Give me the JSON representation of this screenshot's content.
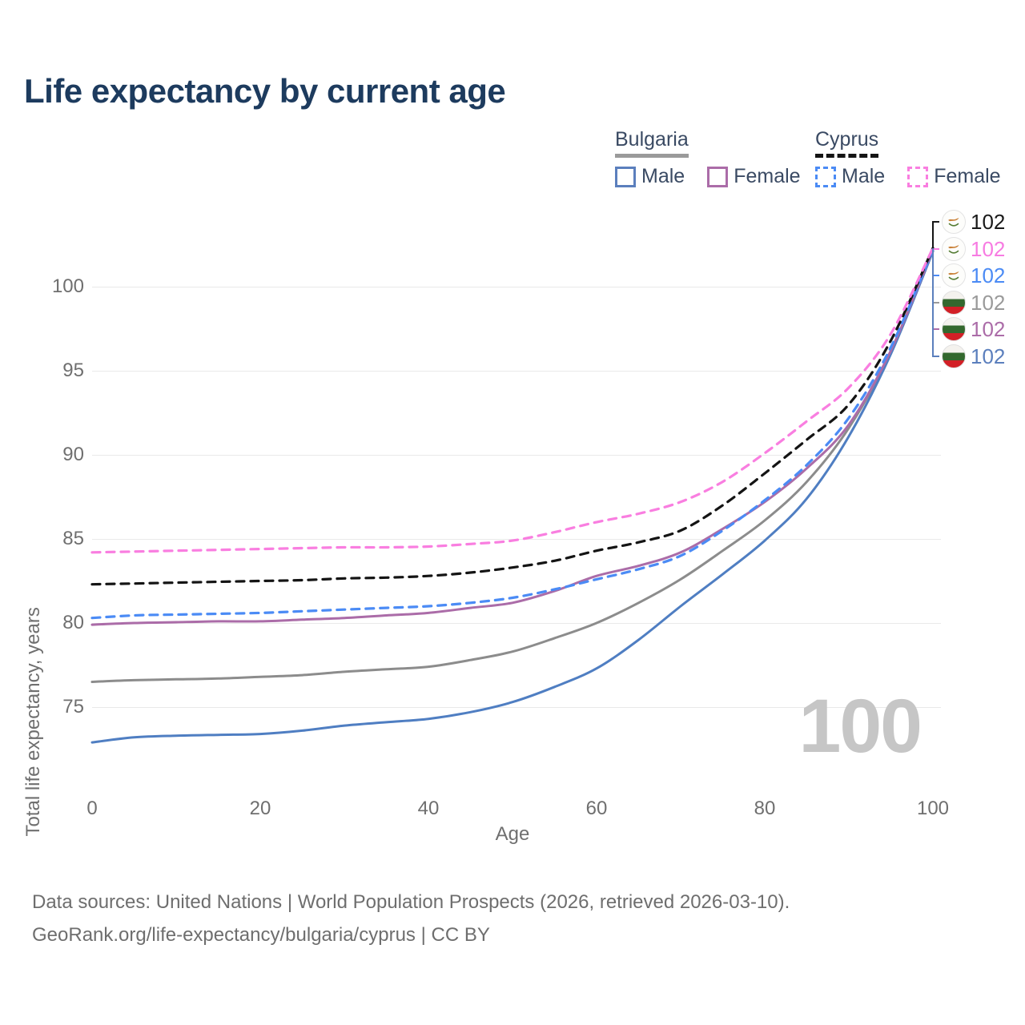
{
  "header": {
    "title": "Life expectancy by current age"
  },
  "legend": {
    "groups": [
      {
        "country": "Bulgaria",
        "line_style": "solid",
        "underline_color": "#9a9a9a",
        "items": [
          {
            "label": "Male",
            "color": "#5b7fbd"
          },
          {
            "label": "Female",
            "color": "#ab6ca8"
          }
        ]
      },
      {
        "country": "Cyprus",
        "line_style": "dashed",
        "underline_color": "#141414",
        "items": [
          {
            "label": "Male",
            "color": "#4b8bf5"
          },
          {
            "label": "Female",
            "color": "#f97ee0"
          }
        ]
      }
    ]
  },
  "chart_data": {
    "type": "line",
    "title": "Life expectancy by current age",
    "xlabel": "Age",
    "ylabel": "Total life expectancy, years",
    "xlim": [
      0,
      100
    ],
    "ylim": [
      71.8,
      104.2
    ],
    "xticks": [
      0,
      20,
      40,
      60,
      80,
      100
    ],
    "yticks": [
      75,
      80,
      85,
      90,
      95,
      100
    ],
    "grid": "horizontal",
    "legend_position": "top-right",
    "x": [
      0,
      5,
      10,
      15,
      20,
      25,
      30,
      35,
      40,
      45,
      50,
      55,
      60,
      65,
      70,
      75,
      80,
      85,
      90,
      95,
      100
    ],
    "series": [
      {
        "name": "Bulgaria — both sexes",
        "country": "Bulgaria",
        "sex": "Both",
        "style": "solid",
        "color": "#8c8c8c",
        "end_label": "102",
        "values": [
          76.5,
          76.6,
          76.65,
          76.7,
          76.8,
          76.9,
          77.1,
          77.25,
          77.4,
          77.8,
          78.3,
          79.1,
          80.0,
          81.2,
          82.6,
          84.3,
          86.1,
          88.4,
          91.6,
          96.1,
          102.1
        ]
      },
      {
        "name": "Bulgaria — male",
        "country": "Bulgaria",
        "sex": "Male",
        "style": "solid",
        "color": "#4f7ec2",
        "end_label": "102",
        "values": [
          72.9,
          73.2,
          73.3,
          73.35,
          73.4,
          73.6,
          73.9,
          74.1,
          74.3,
          74.7,
          75.3,
          76.2,
          77.3,
          79.0,
          81.0,
          82.9,
          84.9,
          87.4,
          91.1,
          96.0,
          102.1
        ]
      },
      {
        "name": "Bulgaria — female",
        "country": "Bulgaria",
        "sex": "Female",
        "style": "solid",
        "color": "#ab6ca8",
        "end_label": "102",
        "values": [
          79.9,
          80.0,
          80.05,
          80.1,
          80.1,
          80.2,
          80.3,
          80.45,
          80.6,
          80.9,
          81.2,
          81.9,
          82.8,
          83.4,
          84.2,
          85.6,
          87.2,
          89.2,
          91.8,
          96.2,
          102.2
        ]
      },
      {
        "name": "Cyprus — male",
        "country": "Cyprus",
        "sex": "Male",
        "style": "dashed",
        "color": "#4b8bf5",
        "end_label": "102",
        "values": [
          80.3,
          80.45,
          80.5,
          80.55,
          80.6,
          80.7,
          80.8,
          80.9,
          81.0,
          81.2,
          81.5,
          82.0,
          82.6,
          83.2,
          84.0,
          85.5,
          87.3,
          89.4,
          92.2,
          96.4,
          102.2
        ]
      },
      {
        "name": "Cyprus — both sexes",
        "country": "Cyprus",
        "sex": "Both",
        "style": "dashed",
        "color": "#141414",
        "end_label": "102",
        "values": [
          82.3,
          82.35,
          82.4,
          82.45,
          82.5,
          82.55,
          82.65,
          82.7,
          82.8,
          83.0,
          83.3,
          83.7,
          84.3,
          84.8,
          85.5,
          87.0,
          88.9,
          90.9,
          93.0,
          96.8,
          102.3
        ]
      },
      {
        "name": "Cyprus — female",
        "country": "Cyprus",
        "sex": "Female",
        "style": "dashed",
        "color": "#f97ee0",
        "end_label": "102",
        "values": [
          84.2,
          84.25,
          84.3,
          84.35,
          84.4,
          84.45,
          84.5,
          84.5,
          84.55,
          84.7,
          84.9,
          85.4,
          86.0,
          86.5,
          87.2,
          88.4,
          90.1,
          92.0,
          94.0,
          97.2,
          102.3
        ]
      }
    ],
    "end_labels": [
      {
        "flag": "cyprus",
        "series": "Cyprus — both sexes",
        "value": "102",
        "color": "#1a1a1a"
      },
      {
        "flag": "cyprus",
        "series": "Cyprus — female",
        "value": "102",
        "color": "#f77be2"
      },
      {
        "flag": "cyprus",
        "series": "Cyprus — male",
        "value": "102",
        "color": "#4b8bf5"
      },
      {
        "flag": "bulgaria",
        "series": "Bulgaria — both sexes",
        "value": "102",
        "color": "#9a9a9a"
      },
      {
        "flag": "bulgaria",
        "series": "Bulgaria — female",
        "value": "102",
        "color": "#ab6ca8"
      },
      {
        "flag": "bulgaria",
        "series": "Bulgaria — male",
        "value": "102",
        "color": "#5b7fbd"
      }
    ],
    "age_frame_indicator": "100"
  },
  "footer": {
    "line1": "Data sources: United Nations | World Population Prospects (2026, retrieved 2026-03-10).",
    "line2": "GeoRank.org/life-expectancy/bulgaria/cyprus | CC BY"
  }
}
